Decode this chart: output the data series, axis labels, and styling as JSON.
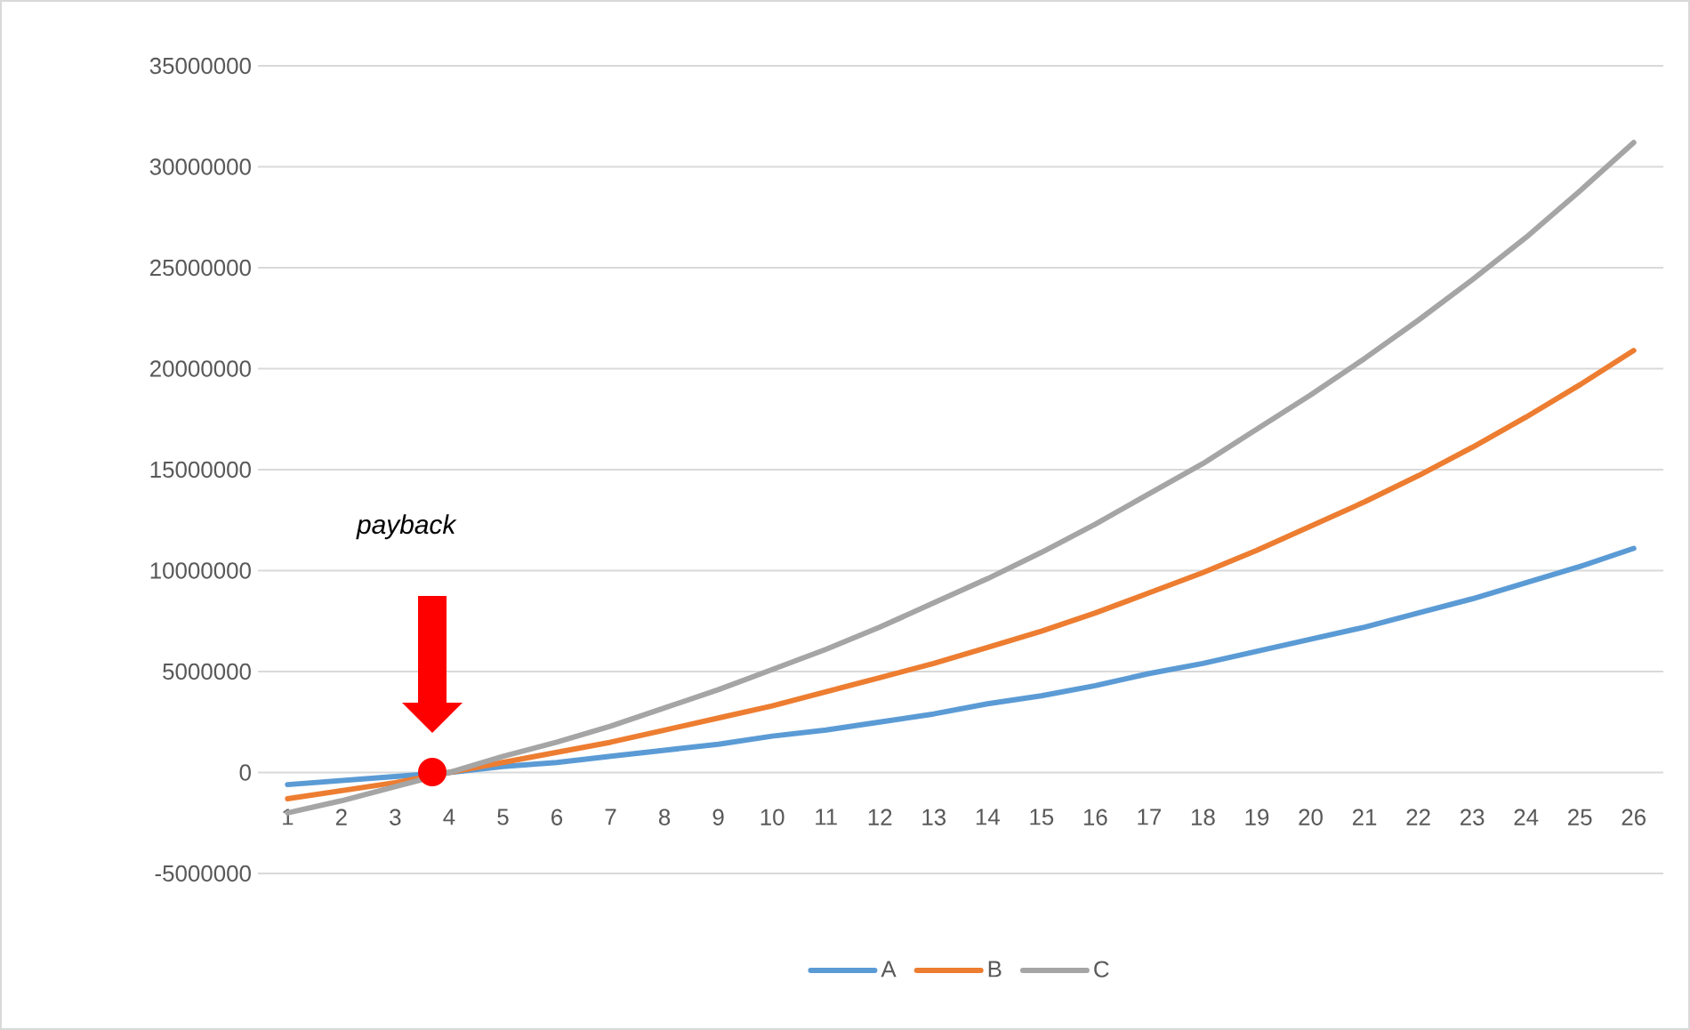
{
  "chart_data": {
    "type": "line",
    "categories": [
      "1",
      "2",
      "3",
      "4",
      "5",
      "6",
      "7",
      "8",
      "9",
      "10",
      "11",
      "12",
      "13",
      "14",
      "15",
      "16",
      "17",
      "18",
      "19",
      "20",
      "21",
      "22",
      "23",
      "24",
      "25",
      "26"
    ],
    "series": [
      {
        "name": "A",
        "color": "#5b9bd5",
        "values": [
          -600000,
          -400000,
          -200000,
          0,
          300000,
          500000,
          800000,
          1100000,
          1400000,
          1800000,
          2100000,
          2500000,
          2900000,
          3400000,
          3800000,
          4300000,
          4900000,
          5400000,
          6000000,
          6600000,
          7200000,
          7900000,
          8600000,
          9400000,
          10200000,
          11100000
        ]
      },
      {
        "name": "B",
        "color": "#ed7d31",
        "values": [
          -1300000,
          -900000,
          -500000,
          0,
          500000,
          1000000,
          1500000,
          2100000,
          2700000,
          3300000,
          4000000,
          4700000,
          5400000,
          6200000,
          7000000,
          7900000,
          8900000,
          9900000,
          11000000,
          12200000,
          13400000,
          14700000,
          16100000,
          17600000,
          19200000,
          20900000
        ]
      },
      {
        "name": "C",
        "color": "#a5a5a5",
        "values": [
          -2000000,
          -1400000,
          -700000,
          0,
          800000,
          1500000,
          2300000,
          3200000,
          4100000,
          5100000,
          6100000,
          7200000,
          8400000,
          9600000,
          10900000,
          12300000,
          13800000,
          15300000,
          17000000,
          18700000,
          20500000,
          22400000,
          24400000,
          26500000,
          28800000,
          31200000
        ]
      }
    ],
    "ylim": [
      -5000000,
      35000000
    ],
    "yticks": [
      -5000000,
      0,
      5000000,
      10000000,
      15000000,
      20000000,
      25000000,
      30000000,
      35000000
    ],
    "grid": "y",
    "legend": "bottom",
    "marker": "none",
    "line_style": "solid",
    "annotations": [
      "payback"
    ]
  }
}
